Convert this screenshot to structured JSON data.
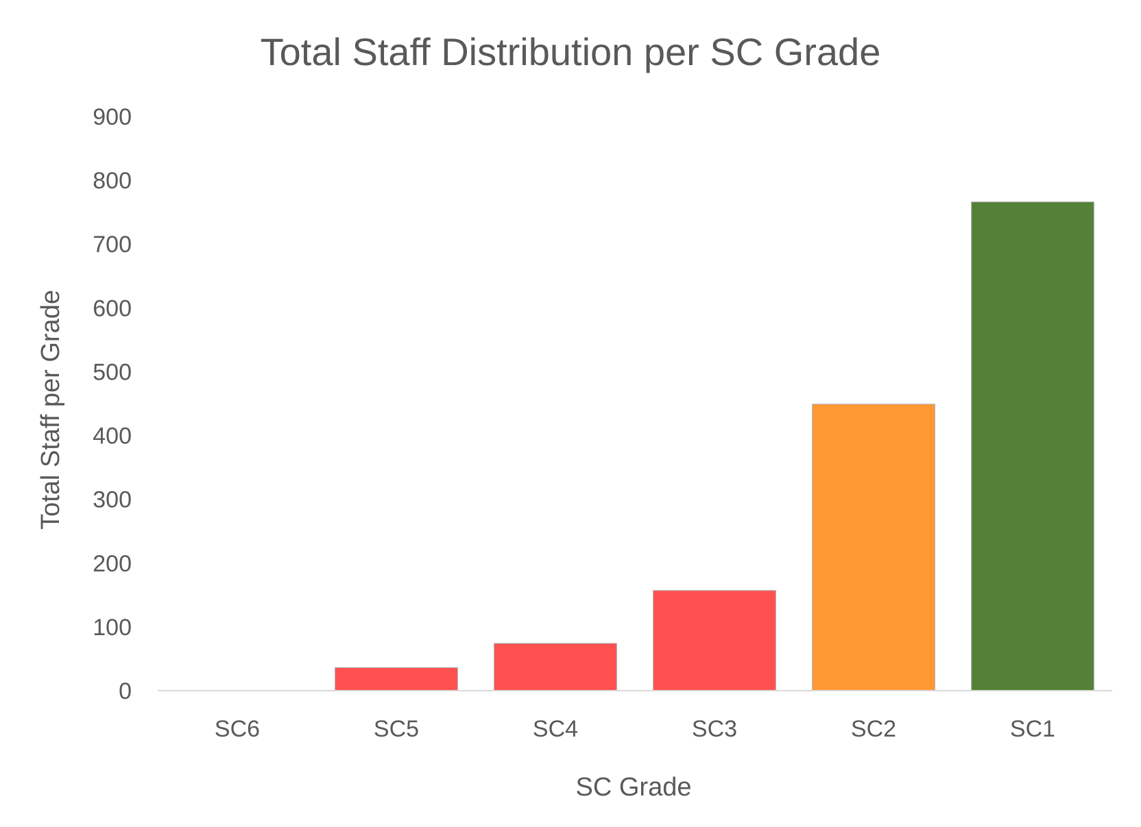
{
  "chart_data": {
    "type": "bar",
    "title": "Total Staff Distribution per SC Grade",
    "xlabel": "SC Grade",
    "ylabel": "Total Staff per Grade",
    "categories": [
      "SC6",
      "SC5",
      "SC4",
      "SC3",
      "SC2",
      "SC1"
    ],
    "values": [
      0,
      36,
      74,
      157,
      449,
      766
    ],
    "bar_colors": [
      "#FF5050",
      "#FF5050",
      "#FF5050",
      "#FF5050",
      "#FF9933",
      "#538135"
    ],
    "ylim": [
      0,
      900
    ],
    "yticks": [
      0,
      100,
      200,
      300,
      400,
      500,
      600,
      700,
      800,
      900
    ],
    "grid": false,
    "legend": "none",
    "colors": {
      "text": "#595959",
      "axis_line": "#D9D9D9",
      "bar_border": "#A6A6A6"
    }
  }
}
